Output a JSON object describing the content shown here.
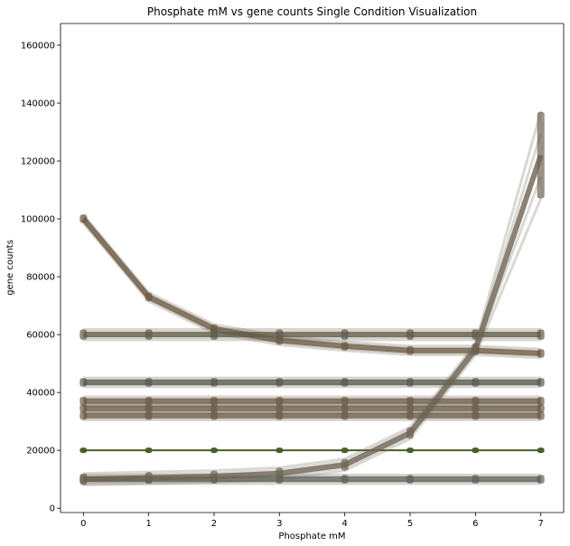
{
  "chart_data": {
    "type": "line",
    "title": "Phosphate mM vs gene counts Single Condition Visualization",
    "xlabel": "Phosphate mM",
    "ylabel": "gene counts",
    "x": [
      0,
      1,
      2,
      3,
      4,
      5,
      6,
      7
    ],
    "xlim": [
      -0.35,
      7.35
    ],
    "ylim": [
      -1500,
      167500
    ],
    "xticks": [
      "0",
      "1",
      "2",
      "3",
      "4",
      "5",
      "6",
      "7"
    ],
    "yticks": [
      0,
      20000,
      40000,
      60000,
      80000,
      100000,
      120000,
      140000,
      160000
    ],
    "ytick_labels": [
      "0",
      "20000",
      "40000",
      "60000",
      "80000",
      "100000",
      "120000",
      "140000",
      "160000"
    ],
    "grid": false,
    "legend": "none",
    "series": [
      {
        "values": [
          100000,
          73000,
          62000,
          58000,
          56000,
          54500,
          54500,
          53500
        ],
        "color": "#6b5a43",
        "spread": 1500
      },
      {
        "values": [
          60000,
          60000,
          60000,
          60000,
          60000,
          60000,
          60000,
          60000
        ],
        "color": "#5e5a48",
        "spread": 1800
      },
      {
        "values": [
          43500,
          43500,
          43500,
          43500,
          43500,
          43500,
          43500,
          43500
        ],
        "color": "#5a5a4a",
        "spread": 1500
      },
      {
        "values": [
          37000,
          37000,
          37000,
          37000,
          37000,
          37000,
          37000,
          37000
        ],
        "color": "#6a5c48",
        "spread": 1500
      },
      {
        "values": [
          34500,
          34500,
          34500,
          34500,
          34500,
          34500,
          34500,
          34500
        ],
        "color": "#6a5c48",
        "spread": 1500
      },
      {
        "values": [
          32000,
          32000,
          32000,
          32000,
          32000,
          32000,
          32000,
          32000
        ],
        "color": "#6a5c48",
        "spread": 1500
      },
      {
        "values": [
          20000,
          20000,
          20000,
          20000,
          20000,
          20000,
          20000,
          20000
        ],
        "color": "#4a5e2a",
        "spread": 0
      },
      {
        "values": [
          10000,
          10000,
          10000,
          10000,
          10000,
          10000,
          10000,
          10000
        ],
        "color": "#5e6058",
        "spread": 1500
      },
      {
        "values": [
          10000,
          10500,
          11000,
          12000,
          15000,
          26000,
          55000,
          122000
        ],
        "color": "#6b6352",
        "spread": 2000,
        "end_spread": 15000
      }
    ]
  }
}
